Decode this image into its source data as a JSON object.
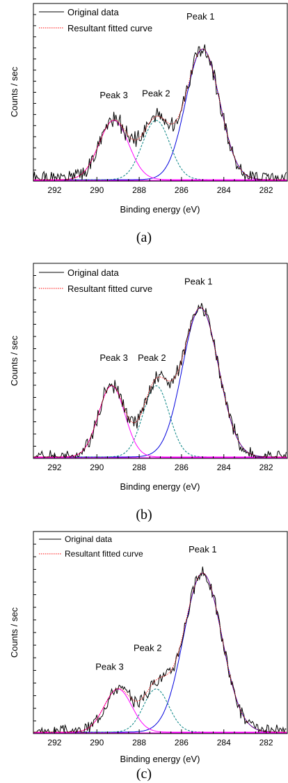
{
  "chart_data": [
    {
      "type": "line",
      "panel_label": "(a)",
      "xlabel": "Binding energy (eV)",
      "ylabel": "Counts / sec",
      "xlim": [
        293.0,
        281.0
      ],
      "x_reversed": true,
      "xticks": [
        292,
        290,
        288,
        286,
        284,
        282
      ],
      "ylim": [
        0,
        1.0
      ],
      "y_tick_labels_shown": false,
      "grid": false,
      "legend": {
        "position": "top-left",
        "entries": [
          "Original data",
          "Resultant fitted curve"
        ]
      },
      "annotations": [
        {
          "text": "Peak 1",
          "x": 285.1,
          "y": 1.08
        },
        {
          "text": "Peak 2",
          "x": 287.2,
          "y": 0.56
        },
        {
          "text": "Peak 3",
          "x": 289.2,
          "y": 0.55
        }
      ],
      "series": [
        {
          "name": "Original data",
          "style": "solid",
          "color": "#000000",
          "noise": 0.05,
          "seed": 1
        },
        {
          "name": "Resultant fitted curve",
          "style": "dotted",
          "color": "#ff0000"
        }
      ],
      "components": [
        {
          "label": "Peak 1",
          "center": 285.0,
          "amplitude": 0.88,
          "sigma": 0.8,
          "color": "#0000dd",
          "style": "solid"
        },
        {
          "label": "Peak 2",
          "center": 287.2,
          "amplitude": 0.4,
          "sigma": 0.65,
          "color": "#008080",
          "style": "dashed"
        },
        {
          "label": "Peak 3",
          "center": 289.2,
          "amplitude": 0.4,
          "sigma": 0.7,
          "color": "#ff00ff",
          "style": "solid"
        }
      ]
    },
    {
      "type": "line",
      "panel_label": "(b)",
      "xlabel": "Binding energy (eV)",
      "ylabel": "Counts / sec",
      "xlim": [
        293.0,
        281.0
      ],
      "x_reversed": true,
      "xticks": [
        292,
        290,
        288,
        286,
        284,
        282
      ],
      "ylim": [
        0,
        1.0
      ],
      "y_tick_labels_shown": false,
      "grid": false,
      "legend": {
        "position": "top-left",
        "entries": [
          "Original data",
          "Resultant fitted curve"
        ]
      },
      "annotations": [
        {
          "text": "Peak 1",
          "x": 285.2,
          "y": 1.04
        },
        {
          "text": "Peak 2",
          "x": 287.4,
          "y": 0.58
        },
        {
          "text": "Peak 3",
          "x": 289.2,
          "y": 0.58
        }
      ],
      "series": [
        {
          "name": "Original data",
          "style": "solid",
          "color": "#000000",
          "noise": 0.04,
          "seed": 2
        },
        {
          "name": "Resultant fitted curve",
          "style": "dotted",
          "color": "#ff0000"
        }
      ],
      "components": [
        {
          "label": "Peak 1",
          "center": 285.1,
          "amplitude": 0.9,
          "sigma": 0.85,
          "color": "#0000dd",
          "style": "solid"
        },
        {
          "label": "Peak 2",
          "center": 287.2,
          "amplitude": 0.43,
          "sigma": 0.62,
          "color": "#008080",
          "style": "dashed"
        },
        {
          "label": "Peak 3",
          "center": 289.3,
          "amplitude": 0.43,
          "sigma": 0.62,
          "color": "#ff00ff",
          "style": "solid"
        }
      ]
    },
    {
      "type": "line",
      "panel_label": "(c)",
      "xlabel": "Binding energy (eV)",
      "ylabel": "Counts / sec",
      "xlim": [
        293.0,
        281.0
      ],
      "x_reversed": true,
      "xticks": [
        292,
        290,
        288,
        286,
        284,
        282
      ],
      "ylim": [
        0,
        1.0
      ],
      "y_tick_labels_shown": false,
      "grid": false,
      "legend": {
        "position": "top-left",
        "entries": [
          "Original data",
          "Resultant fitted curve"
        ]
      },
      "annotations": [
        {
          "text": "Peak 1",
          "x": 285.0,
          "y": 1.04
        },
        {
          "text": "Peak 2",
          "x": 287.6,
          "y": 0.47
        },
        {
          "text": "Peak 3",
          "x": 289.4,
          "y": 0.36
        }
      ],
      "series": [
        {
          "name": "Original data",
          "style": "solid",
          "color": "#000000",
          "noise": 0.035,
          "seed": 3
        },
        {
          "name": "Resultant fitted curve",
          "style": "dotted",
          "color": "#ff0000"
        }
      ],
      "components": [
        {
          "label": "Peak 1",
          "center": 285.0,
          "amplitude": 0.92,
          "sigma": 0.9,
          "color": "#0000dd",
          "style": "solid"
        },
        {
          "label": "Peak 2",
          "center": 287.2,
          "amplitude": 0.25,
          "sigma": 0.6,
          "color": "#008080",
          "style": "dashed"
        },
        {
          "label": "Peak 3",
          "center": 289.0,
          "amplitude": 0.25,
          "sigma": 0.65,
          "color": "#ff00ff",
          "style": "solid"
        }
      ]
    }
  ]
}
